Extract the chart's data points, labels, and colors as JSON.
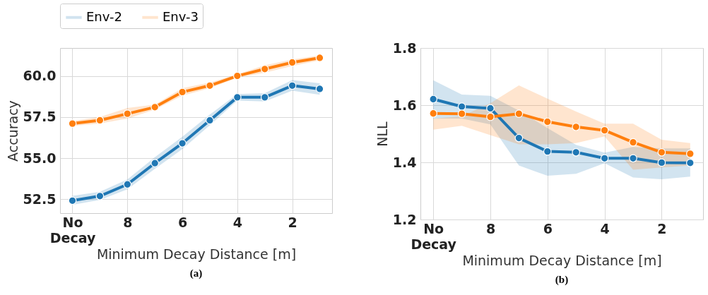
{
  "chart_data": [
    {
      "type": "line",
      "xlabel": "Minimum Decay Distance [m]",
      "ylabel": "Accuracy",
      "annotations": [
        "(a)"
      ],
      "x": [
        10,
        9,
        8,
        7,
        6,
        5,
        4,
        3,
        2,
        1
      ],
      "xlim": [
        10.45,
        0.55
      ],
      "xticks": [
        {
          "value": 10,
          "label": "No Decay"
        },
        8,
        6,
        4,
        2
      ],
      "ylim": [
        51.65,
        61.7
      ],
      "yticks": [
        52.5,
        {
          "value": 55,
          "label": "55.0"
        },
        57.5,
        {
          "value": 60,
          "label": "60.0"
        }
      ],
      "grid": true,
      "legend": "top",
      "marker": "circle",
      "line_style": "solid",
      "series": [
        {
          "name": "Env-2",
          "color": "#1f77b4",
          "values": [
            52.41,
            52.69,
            53.4,
            54.69,
            55.9,
            57.3,
            58.7,
            58.7,
            59.41,
            59.21
          ],
          "lower": [
            52.15,
            52.45,
            53.1,
            54.35,
            55.55,
            57.0,
            58.5,
            58.45,
            59.1,
            58.85
          ],
          "upper": [
            52.7,
            52.95,
            53.7,
            55.05,
            56.3,
            57.65,
            58.9,
            58.95,
            59.75,
            59.55
          ]
        },
        {
          "name": "Env-3",
          "color": "#ff7f0e",
          "values": [
            57.1,
            57.3,
            57.7,
            58.1,
            59.02,
            59.41,
            60.0,
            60.42,
            60.82,
            61.1
          ],
          "lower": [
            56.95,
            57.1,
            57.4,
            57.95,
            58.8,
            59.25,
            59.9,
            60.2,
            60.6,
            60.95
          ],
          "upper": [
            57.25,
            57.5,
            58.05,
            58.25,
            59.25,
            59.6,
            60.1,
            60.65,
            61.0,
            61.25
          ]
        }
      ]
    },
    {
      "type": "line",
      "xlabel": "Minimum Decay Distance [m]",
      "ylabel": "NLL",
      "annotations": [
        "(b)"
      ],
      "x": [
        10,
        9,
        8,
        7,
        6,
        5,
        4,
        3,
        2,
        1
      ],
      "xlim": [
        10.45,
        0.55
      ],
      "xticks": [
        {
          "value": 10,
          "label": "No Decay"
        },
        8,
        6,
        4,
        2
      ],
      "ylim": [
        1.2,
        1.8
      ],
      "yticks": [
        1.2,
        1.4,
        1.6,
        1.8
      ],
      "grid": true,
      "legend": "top",
      "marker": "circle",
      "line_style": "solid",
      "series": [
        {
          "name": "Env-2",
          "color": "#1f77b4",
          "values": [
            1.621,
            1.595,
            1.589,
            1.485,
            1.438,
            1.435,
            1.414,
            1.414,
            1.399,
            1.398
          ],
          "lower": [
            1.553,
            1.553,
            1.533,
            1.389,
            1.353,
            1.36,
            1.397,
            1.347,
            1.341,
            1.35
          ],
          "upper": [
            1.687,
            1.637,
            1.633,
            1.581,
            1.52,
            1.461,
            1.434,
            1.454,
            1.449,
            1.449
          ]
        },
        {
          "name": "Env-3",
          "color": "#ff7f0e",
          "values": [
            1.571,
            1.57,
            1.559,
            1.57,
            1.542,
            1.524,
            1.512,
            1.47,
            1.435,
            1.43
          ],
          "lower": [
            1.514,
            1.528,
            1.495,
            1.463,
            1.463,
            1.467,
            1.491,
            1.374,
            1.382,
            1.389
          ],
          "upper": [
            1.553,
            1.561,
            1.607,
            1.669,
            1.623,
            1.578,
            1.535,
            1.535,
            1.479,
            1.467
          ]
        }
      ]
    }
  ]
}
